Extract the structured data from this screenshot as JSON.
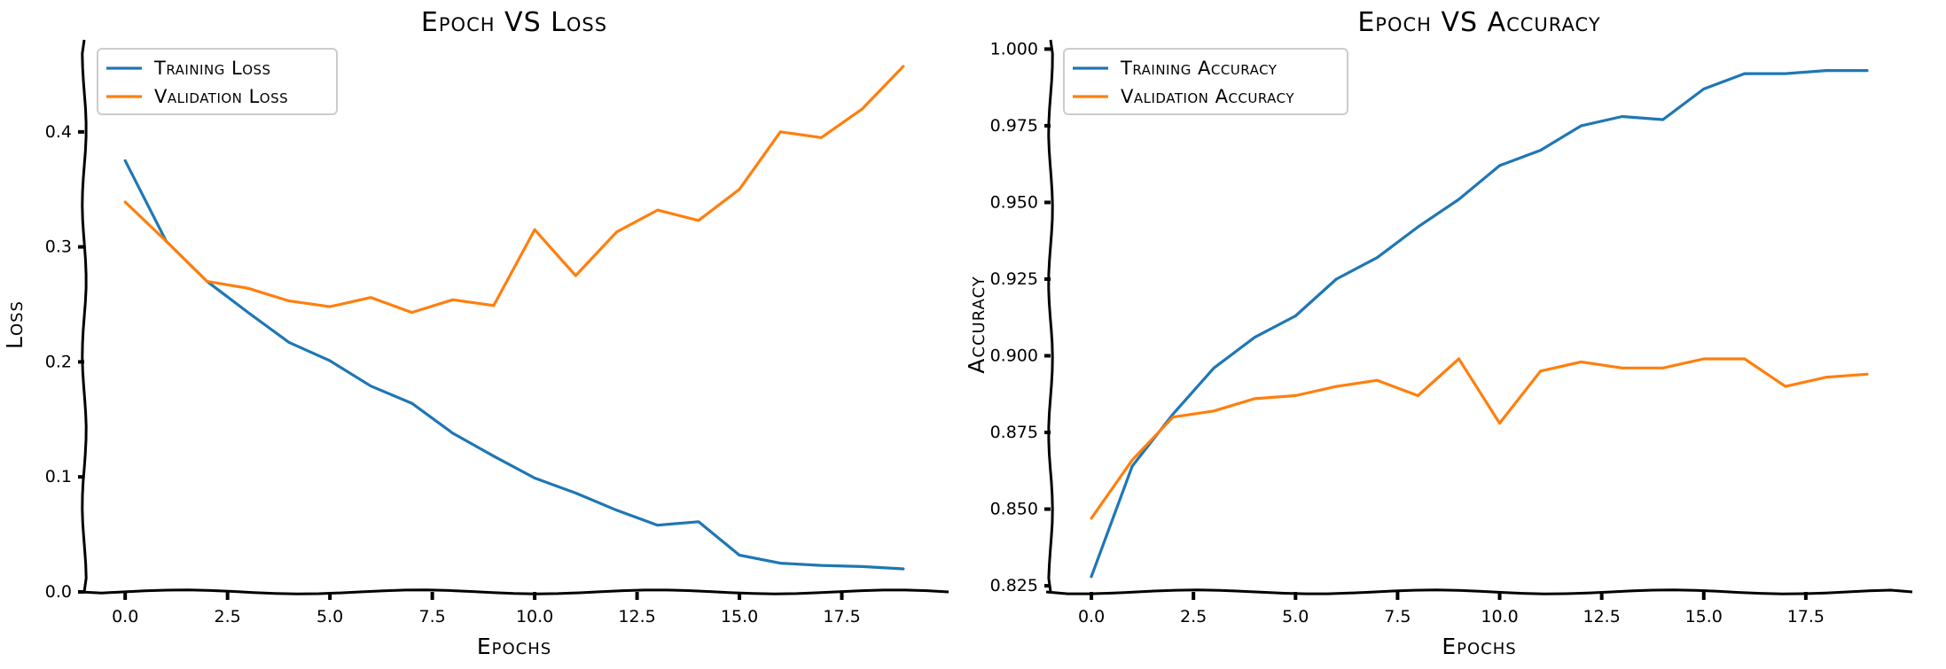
{
  "chart_data": [
    {
      "type": "line",
      "title": "Epoch VS Loss",
      "xlabel": "Epochs",
      "ylabel": "Loss",
      "xlim": [
        -1,
        20
      ],
      "ylim": [
        0,
        0.48
      ],
      "xticks": [
        0.0,
        2.5,
        5.0,
        7.5,
        10.0,
        12.5,
        15.0,
        17.5
      ],
      "xtick_labels": [
        "0.0",
        "2.5",
        "5.0",
        "7.5",
        "10.0",
        "12.5",
        "15.0",
        "17.5"
      ],
      "yticks": [
        0.0,
        0.1,
        0.2,
        0.3,
        0.4
      ],
      "ytick_labels": [
        "0.0",
        "0.1",
        "0.2",
        "0.3",
        "0.4"
      ],
      "legend_position": "top-left",
      "x": [
        0,
        1,
        2,
        3,
        4,
        5,
        6,
        7,
        8,
        9,
        10,
        11,
        12,
        13,
        14,
        15,
        16,
        17,
        18,
        19
      ],
      "series": [
        {
          "name": "Training Loss",
          "color": "#1f77b4",
          "values": [
            0.375,
            0.305,
            0.27,
            0.243,
            0.217,
            0.201,
            0.179,
            0.164,
            0.138,
            0.118,
            0.099,
            0.086,
            0.071,
            0.058,
            0.061,
            0.032,
            0.025,
            0.023,
            0.022,
            0.02
          ]
        },
        {
          "name": "Validation Loss",
          "color": "#ff7f0e",
          "values": [
            0.339,
            0.305,
            0.27,
            0.264,
            0.253,
            0.248,
            0.256,
            0.243,
            0.254,
            0.249,
            0.315,
            0.275,
            0.313,
            0.332,
            0.323,
            0.35,
            0.4,
            0.395,
            0.42,
            0.457
          ]
        }
      ]
    },
    {
      "type": "line",
      "title": "Epoch VS Accuracy",
      "xlabel": "Epochs",
      "ylabel": "Accuracy",
      "xlim": [
        -1,
        20
      ],
      "ylim": [
        0.823,
        1.003
      ],
      "xticks": [
        0.0,
        2.5,
        5.0,
        7.5,
        10.0,
        12.5,
        15.0,
        17.5
      ],
      "xtick_labels": [
        "0.0",
        "2.5",
        "5.0",
        "7.5",
        "10.0",
        "12.5",
        "15.0",
        "17.5"
      ],
      "yticks": [
        0.825,
        0.85,
        0.875,
        0.9,
        0.925,
        0.95,
        0.975,
        1.0
      ],
      "ytick_labels": [
        "0.825",
        "0.850",
        "0.875",
        "0.900",
        "0.925",
        "0.950",
        "0.975",
        "1.000"
      ],
      "legend_position": "top-left",
      "x": [
        0,
        1,
        2,
        3,
        4,
        5,
        6,
        7,
        8,
        9,
        10,
        11,
        12,
        13,
        14,
        15,
        16,
        17,
        18,
        19
      ],
      "series": [
        {
          "name": "Training Accuracy",
          "color": "#1f77b4",
          "values": [
            0.828,
            0.864,
            0.881,
            0.896,
            0.906,
            0.913,
            0.925,
            0.932,
            0.942,
            0.951,
            0.962,
            0.967,
            0.975,
            0.978,
            0.977,
            0.987,
            0.992,
            0.992,
            0.993,
            0.993
          ]
        },
        {
          "name": "Validation Accuracy",
          "color": "#ff7f0e",
          "values": [
            0.847,
            0.866,
            0.88,
            0.882,
            0.886,
            0.887,
            0.89,
            0.892,
            0.887,
            0.899,
            0.878,
            0.895,
            0.898,
            0.896,
            0.896,
            0.899,
            0.899,
            0.89,
            0.893,
            0.894
          ]
        }
      ]
    }
  ]
}
